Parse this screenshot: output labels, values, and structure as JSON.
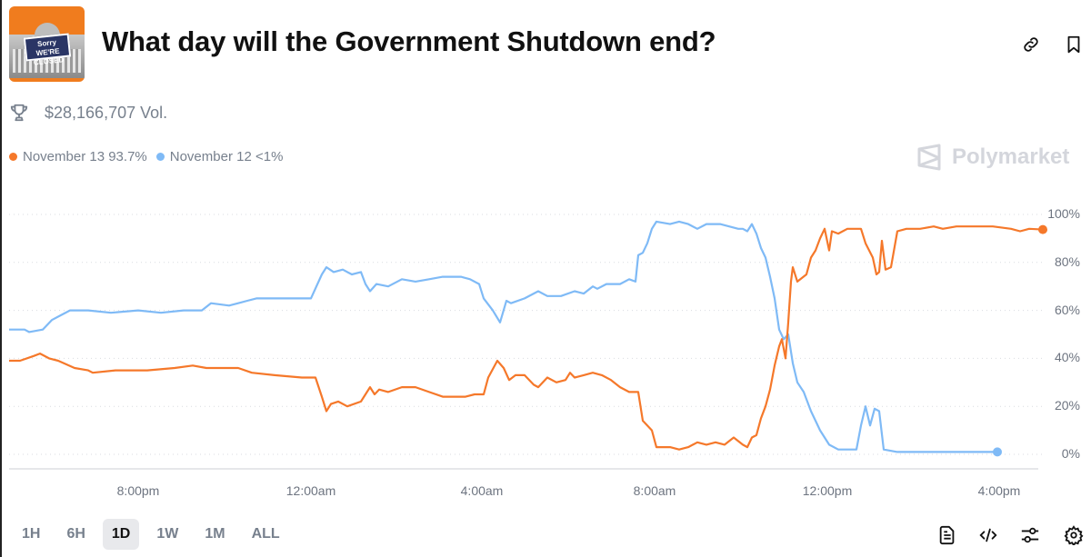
{
  "header": {
    "title": "What day will the Government Shutdown end?",
    "thumbnail_text": [
      "Sorry WE'RE",
      "CLOSED"
    ],
    "icons": [
      "link-icon",
      "bookmark-icon"
    ]
  },
  "volume": {
    "icon": "trophy-icon",
    "text": "$28,166,707 Vol."
  },
  "legend": [
    {
      "label": "November 13 93.7%",
      "color": "#f5782a"
    },
    {
      "label": "November 12 <1%",
      "color": "#7fbaf6"
    }
  ],
  "brand": "Polymarket",
  "time_ranges": [
    "1H",
    "6H",
    "1D",
    "1W",
    "1M",
    "ALL"
  ],
  "active_range": "1D",
  "footer_icons": [
    "document-icon",
    "embed-code-icon",
    "sliders-icon",
    "settings-icon"
  ],
  "chart_data": {
    "type": "line",
    "title": "What day will the Government Shutdown end?",
    "xlabel": "",
    "ylabel": "",
    "x_ticks": [
      "8:00pm",
      "12:00am",
      "4:00am",
      "8:00am",
      "12:00pm",
      "4:00pm"
    ],
    "y_ticks": [
      "100%",
      "80%",
      "60%",
      "40%",
      "20%",
      "0%"
    ],
    "ylim": [
      0,
      100
    ],
    "grid": "horizontal dotted",
    "legend_position": "top-left",
    "series": [
      {
        "name": "November 13",
        "current": "93.7%",
        "color": "#f5782a",
        "points": [
          [
            8,
            39
          ],
          [
            20,
            39
          ],
          [
            35,
            41
          ],
          [
            42,
            42
          ],
          [
            52,
            40
          ],
          [
            62,
            39
          ],
          [
            80,
            36
          ],
          [
            95,
            35
          ],
          [
            100,
            34
          ],
          [
            125,
            35
          ],
          [
            160,
            35
          ],
          [
            190,
            36
          ],
          [
            210,
            37
          ],
          [
            225,
            36
          ],
          [
            260,
            36
          ],
          [
            275,
            34
          ],
          [
            300,
            33
          ],
          [
            330,
            32
          ],
          [
            345,
            32
          ],
          [
            352,
            24
          ],
          [
            357,
            18
          ],
          [
            362,
            21
          ],
          [
            370,
            22
          ],
          [
            380,
            20
          ],
          [
            395,
            22
          ],
          [
            405,
            28
          ],
          [
            410,
            25
          ],
          [
            415,
            27
          ],
          [
            425,
            26
          ],
          [
            440,
            28
          ],
          [
            455,
            28
          ],
          [
            470,
            26
          ],
          [
            485,
            24
          ],
          [
            510,
            24
          ],
          [
            520,
            25
          ],
          [
            530,
            25
          ],
          [
            535,
            32
          ],
          [
            545,
            39
          ],
          [
            552,
            36
          ],
          [
            558,
            31
          ],
          [
            565,
            33
          ],
          [
            575,
            33
          ],
          [
            585,
            29
          ],
          [
            590,
            28
          ],
          [
            600,
            32
          ],
          [
            610,
            30
          ],
          [
            620,
            31
          ],
          [
            625,
            34
          ],
          [
            630,
            32
          ],
          [
            640,
            33
          ],
          [
            650,
            34
          ],
          [
            660,
            33
          ],
          [
            670,
            31
          ],
          [
            680,
            28
          ],
          [
            690,
            26
          ],
          [
            700,
            26
          ],
          [
            705,
            14
          ],
          [
            715,
            10
          ],
          [
            720,
            3
          ],
          [
            735,
            3
          ],
          [
            745,
            2
          ],
          [
            755,
            3
          ],
          [
            765,
            5
          ],
          [
            775,
            4
          ],
          [
            785,
            5
          ],
          [
            795,
            4
          ],
          [
            805,
            7
          ],
          [
            815,
            4
          ],
          [
            820,
            3
          ],
          [
            825,
            7
          ],
          [
            830,
            8
          ],
          [
            835,
            15
          ],
          [
            840,
            20
          ],
          [
            845,
            27
          ],
          [
            850,
            37
          ],
          [
            855,
            45
          ],
          [
            858,
            48
          ],
          [
            862,
            40
          ],
          [
            865,
            55
          ],
          [
            868,
            72
          ],
          [
            870,
            78
          ],
          [
            875,
            72
          ],
          [
            885,
            75
          ],
          [
            890,
            82
          ],
          [
            895,
            85
          ],
          [
            900,
            90
          ],
          [
            905,
            94
          ],
          [
            910,
            85
          ],
          [
            913,
            93
          ],
          [
            920,
            92
          ],
          [
            930,
            94
          ],
          [
            945,
            94
          ],
          [
            950,
            88
          ],
          [
            958,
            82
          ],
          [
            962,
            75
          ],
          [
            965,
            76
          ],
          [
            968,
            89
          ],
          [
            972,
            77
          ],
          [
            978,
            78
          ],
          [
            985,
            93
          ],
          [
            995,
            94
          ],
          [
            1010,
            94
          ],
          [
            1025,
            95
          ],
          [
            1035,
            94
          ],
          [
            1050,
            95
          ],
          [
            1070,
            95
          ],
          [
            1090,
            95
          ],
          [
            1110,
            94
          ],
          [
            1120,
            93
          ],
          [
            1130,
            94
          ],
          [
            1145,
            93.7
          ]
        ]
      },
      {
        "name": "November 12",
        "current": "<1%",
        "color": "#7fbaf6",
        "points": [
          [
            8,
            52
          ],
          [
            25,
            52
          ],
          [
            30,
            51
          ],
          [
            45,
            52
          ],
          [
            55,
            56
          ],
          [
            65,
            58
          ],
          [
            75,
            60
          ],
          [
            95,
            60
          ],
          [
            120,
            59
          ],
          [
            150,
            60
          ],
          [
            175,
            59
          ],
          [
            200,
            60
          ],
          [
            210,
            60
          ],
          [
            220,
            60
          ],
          [
            230,
            63
          ],
          [
            250,
            62
          ],
          [
            260,
            63
          ],
          [
            270,
            64
          ],
          [
            280,
            65
          ],
          [
            300,
            65
          ],
          [
            340,
            65
          ],
          [
            352,
            75
          ],
          [
            357,
            78
          ],
          [
            365,
            76
          ],
          [
            375,
            77
          ],
          [
            385,
            75
          ],
          [
            395,
            76
          ],
          [
            400,
            71
          ],
          [
            405,
            68
          ],
          [
            412,
            71
          ],
          [
            425,
            70
          ],
          [
            440,
            73
          ],
          [
            455,
            72
          ],
          [
            470,
            73
          ],
          [
            485,
            74
          ],
          [
            505,
            74
          ],
          [
            515,
            73
          ],
          [
            525,
            71
          ],
          [
            530,
            65
          ],
          [
            540,
            60
          ],
          [
            548,
            55
          ],
          [
            555,
            64
          ],
          [
            560,
            63
          ],
          [
            575,
            65
          ],
          [
            590,
            68
          ],
          [
            600,
            66
          ],
          [
            615,
            66
          ],
          [
            630,
            68
          ],
          [
            640,
            67
          ],
          [
            650,
            70
          ],
          [
            655,
            69
          ],
          [
            665,
            71
          ],
          [
            680,
            71
          ],
          [
            690,
            73
          ],
          [
            697,
            72
          ],
          [
            700,
            83
          ],
          [
            705,
            84
          ],
          [
            710,
            88
          ],
          [
            715,
            94
          ],
          [
            720,
            97
          ],
          [
            735,
            96
          ],
          [
            745,
            97
          ],
          [
            755,
            96
          ],
          [
            765,
            94
          ],
          [
            775,
            96
          ],
          [
            790,
            96
          ],
          [
            800,
            95
          ],
          [
            810,
            94
          ],
          [
            815,
            94
          ],
          [
            820,
            93
          ],
          [
            825,
            96
          ],
          [
            830,
            92
          ],
          [
            835,
            86
          ],
          [
            840,
            82
          ],
          [
            845,
            74
          ],
          [
            850,
            65
          ],
          [
            855,
            52
          ],
          [
            860,
            48
          ],
          [
            865,
            50
          ],
          [
            870,
            38
          ],
          [
            875,
            30
          ],
          [
            882,
            26
          ],
          [
            890,
            18
          ],
          [
            900,
            10
          ],
          [
            910,
            4
          ],
          [
            920,
            2
          ],
          [
            940,
            2
          ],
          [
            945,
            12
          ],
          [
            950,
            20
          ],
          [
            955,
            12
          ],
          [
            960,
            19
          ],
          [
            965,
            18
          ],
          [
            970,
            2
          ],
          [
            985,
            1
          ],
          [
            1000,
            1
          ],
          [
            1050,
            1
          ],
          [
            1095,
            1
          ]
        ]
      }
    ]
  }
}
